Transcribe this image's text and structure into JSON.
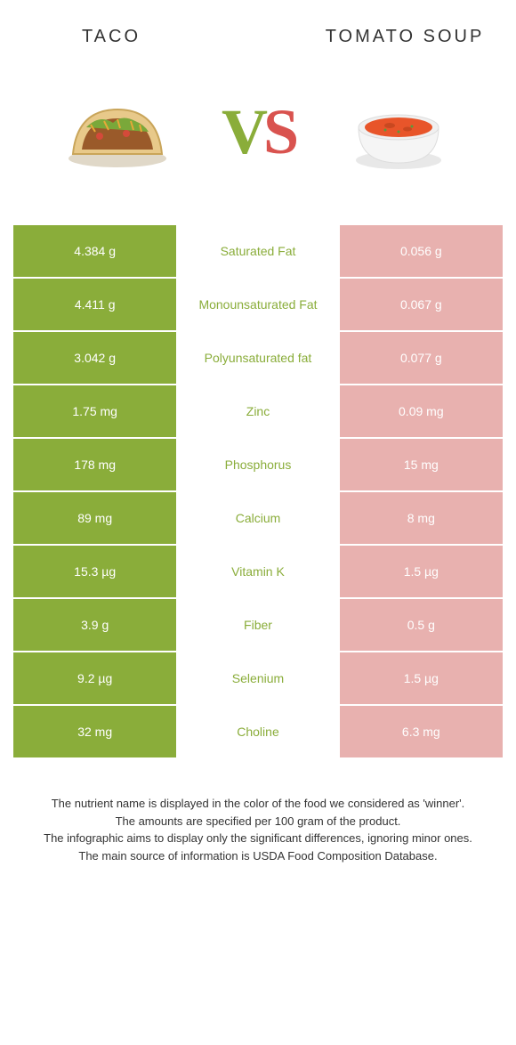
{
  "foods": {
    "left": {
      "title": "TACO",
      "color": "#8aad3a",
      "cell_bg_high": "#8aad3a"
    },
    "right": {
      "title": "TOMATO SOUP",
      "color": "#d9534f",
      "cell_bg_low": "#e8b1af"
    }
  },
  "vs": {
    "v": "V",
    "s": "S"
  },
  "colors": {
    "taco_highlight": "#8aad3a",
    "soup_highlight": "#d9534f",
    "soup_cell": "#e8b1af",
    "nutrient_taco_win": "#8aad3a",
    "footnote_text": "#333333"
  },
  "rows": [
    {
      "left_val": "4.384 g",
      "nutrient": "Saturated Fat",
      "right_val": "0.056 g",
      "winner": "left"
    },
    {
      "left_val": "4.411 g",
      "nutrient": "Monounsaturated Fat",
      "right_val": "0.067 g",
      "winner": "left"
    },
    {
      "left_val": "3.042 g",
      "nutrient": "Polyunsaturated fat",
      "right_val": "0.077 g",
      "winner": "left"
    },
    {
      "left_val": "1.75 mg",
      "nutrient": "Zinc",
      "right_val": "0.09 mg",
      "winner": "left"
    },
    {
      "left_val": "178 mg",
      "nutrient": "Phosphorus",
      "right_val": "15 mg",
      "winner": "left"
    },
    {
      "left_val": "89 mg",
      "nutrient": "Calcium",
      "right_val": "8 mg",
      "winner": "left"
    },
    {
      "left_val": "15.3 µg",
      "nutrient": "Vitamin K",
      "right_val": "1.5 µg",
      "winner": "left"
    },
    {
      "left_val": "3.9 g",
      "nutrient": "Fiber",
      "right_val": "0.5 g",
      "winner": "left"
    },
    {
      "left_val": "9.2 µg",
      "nutrient": "Selenium",
      "right_val": "1.5 µg",
      "winner": "left"
    },
    {
      "left_val": "32 mg",
      "nutrient": "Choline",
      "right_val": "6.3 mg",
      "winner": "left"
    }
  ],
  "footnotes": [
    "The nutrient name is displayed in the color of the food we considered as 'winner'.",
    "The amounts are specified per 100 gram of the product.",
    "The infographic aims to display only the significant differences, ignoring minor ones.",
    "The main source of information is USDA Food Composition Database."
  ]
}
